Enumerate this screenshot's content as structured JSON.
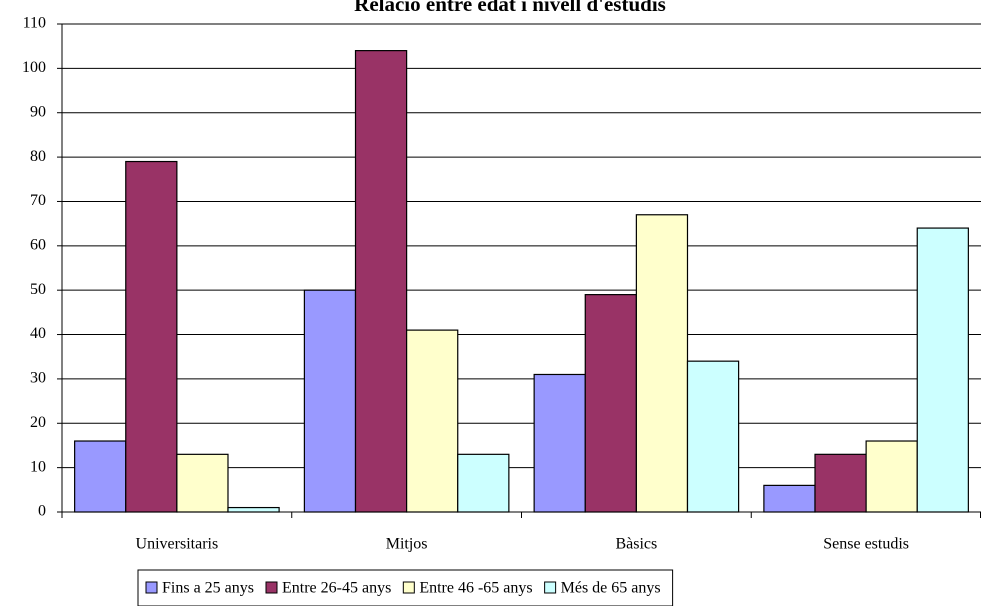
{
  "chart_data": {
    "type": "bar",
    "title": "Relació entre edat i nivell d'estudis",
    "categories": [
      "Universitaris",
      "Mitjos",
      "Bàsics",
      "Sense estudis"
    ],
    "series": [
      {
        "name": "Fins a 25 anys",
        "color": "#9999ff",
        "values": [
          16,
          50,
          31,
          6
        ]
      },
      {
        "name": "Entre 26-45 anys",
        "color": "#993366",
        "values": [
          79,
          104,
          49,
          13
        ]
      },
      {
        "name": "Entre 46 -65 anys",
        "color": "#ffffcc",
        "values": [
          13,
          41,
          67,
          16
        ]
      },
      {
        "name": "Més de 65 anys",
        "color": "#ccffff",
        "values": [
          1,
          13,
          34,
          64
        ]
      }
    ],
    "ylim": [
      0,
      110
    ],
    "yticks": [
      0,
      10,
      20,
      30,
      40,
      50,
      60,
      70,
      80,
      90,
      100,
      110
    ],
    "grid": true,
    "legend": "bottom"
  }
}
